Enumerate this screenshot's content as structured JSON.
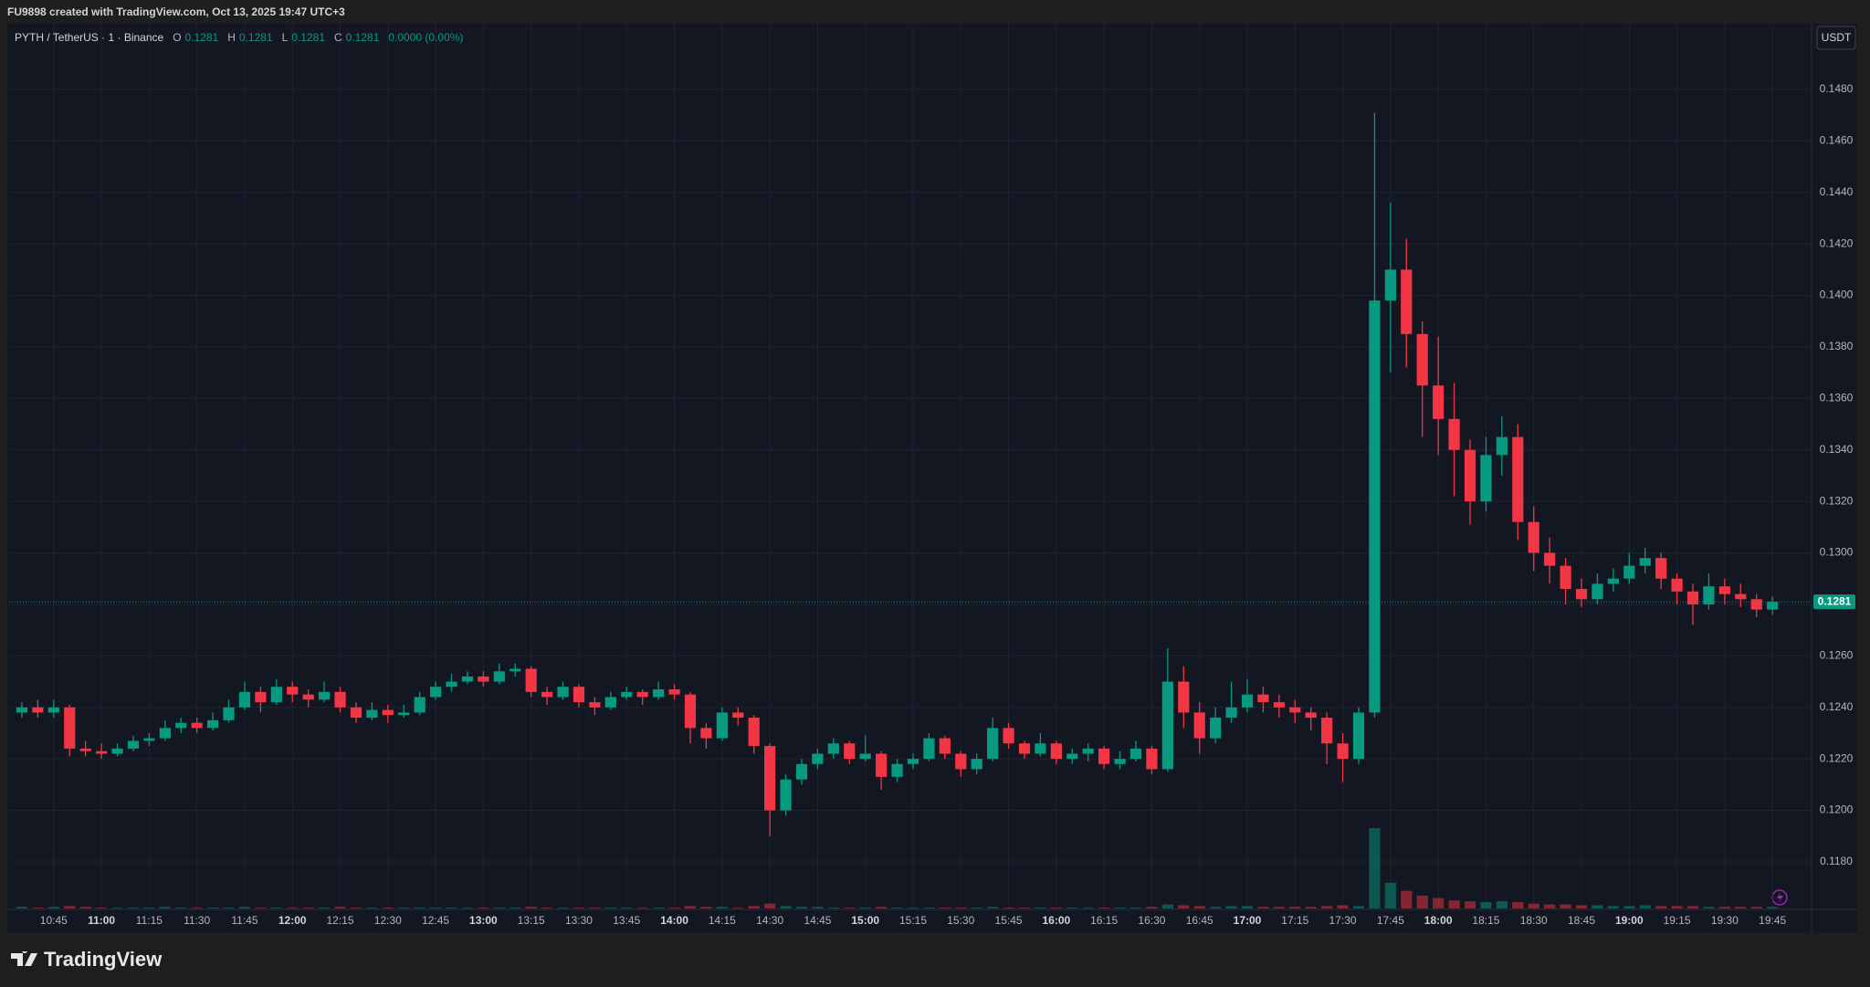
{
  "header": {
    "text": "FU9898 created with TradingView.com, Oct 13, 2025 19:47 UTC+3"
  },
  "legend": {
    "symbol": "PYTH / TetherUS · 1 · Binance",
    "open_label": "O",
    "open": 0.1281,
    "high_label": "H",
    "high": 0.1281,
    "low_label": "L",
    "low": 0.1281,
    "close_label": "C",
    "close": 0.1281,
    "change": "0.0000 (0.00%)"
  },
  "currency": "USDT",
  "brand": "TradingView",
  "chart_data": {
    "type": "candlestick",
    "up_color": "#089981",
    "down_color": "#f23645",
    "grid": true,
    "last_price": 0.1281,
    "ylim": [
      0.11619,
      0.15055
    ],
    "yticks": [
      {
        "value": 0.118,
        "label": "0.1180"
      },
      {
        "value": 0.12,
        "label": "0.1200"
      },
      {
        "value": 0.122,
        "label": "0.1220"
      },
      {
        "value": 0.124,
        "label": "0.1240"
      },
      {
        "value": 0.126,
        "label": "0.1260"
      },
      {
        "value": 0.128,
        "label": "0.1280"
      },
      {
        "value": 0.13,
        "label": "0.1300"
      },
      {
        "value": 0.132,
        "label": "0.1320"
      },
      {
        "value": 0.134,
        "label": "0.1340"
      },
      {
        "value": 0.136,
        "label": "0.1360"
      },
      {
        "value": 0.138,
        "label": "0.1380"
      },
      {
        "value": 0.14,
        "label": "0.1400"
      },
      {
        "value": 0.142,
        "label": "0.1420"
      },
      {
        "value": 0.144,
        "label": "0.1440"
      },
      {
        "value": 0.146,
        "label": "0.1460"
      },
      {
        "value": 0.148,
        "label": "0.1480"
      }
    ],
    "xlim": [
      "10:31",
      "19:57"
    ],
    "xticks": [
      "10:45",
      "11:00",
      "11:15",
      "11:30",
      "11:45",
      "12:00",
      "12:15",
      "12:30",
      "12:45",
      "13:00",
      "13:15",
      "13:30",
      "13:45",
      "14:00",
      "14:15",
      "14:30",
      "14:45",
      "15:00",
      "15:15",
      "15:30",
      "15:45",
      "16:00",
      "16:15",
      "16:30",
      "16:45",
      "17:00",
      "17:15",
      "17:30",
      "17:45",
      "18:00",
      "18:15",
      "18:30",
      "18:45",
      "19:00",
      "19:15",
      "19:30",
      "19:45"
    ],
    "x": [
      "10:35",
      "10:40",
      "10:45",
      "10:50",
      "10:55",
      "11:00",
      "11:05",
      "11:10",
      "11:15",
      "11:20",
      "11:25",
      "11:30",
      "11:35",
      "11:40",
      "11:45",
      "11:50",
      "11:55",
      "12:00",
      "12:05",
      "12:10",
      "12:15",
      "12:20",
      "12:25",
      "12:30",
      "12:35",
      "12:40",
      "12:45",
      "12:50",
      "12:55",
      "13:00",
      "13:05",
      "13:10",
      "13:15",
      "13:20",
      "13:25",
      "13:30",
      "13:35",
      "13:40",
      "13:45",
      "13:50",
      "13:55",
      "14:00",
      "14:05",
      "14:10",
      "14:15",
      "14:20",
      "14:25",
      "14:30",
      "14:35",
      "14:40",
      "14:45",
      "14:50",
      "14:55",
      "15:00",
      "15:05",
      "15:10",
      "15:15",
      "15:20",
      "15:25",
      "15:30",
      "15:35",
      "15:40",
      "15:45",
      "15:50",
      "15:55",
      "16:00",
      "16:05",
      "16:10",
      "16:15",
      "16:20",
      "16:25",
      "16:30",
      "16:35",
      "16:40",
      "16:45",
      "16:50",
      "16:55",
      "17:00",
      "17:05",
      "17:10",
      "17:15",
      "17:20",
      "17:25",
      "17:30",
      "17:35",
      "17:40",
      "17:45",
      "17:50",
      "17:55",
      "18:00",
      "18:05",
      "18:10",
      "18:15",
      "18:20",
      "18:25",
      "18:30",
      "18:35",
      "18:40",
      "18:45",
      "18:50",
      "18:55",
      "19:00",
      "19:05",
      "19:10",
      "19:15",
      "19:20",
      "19:25",
      "19:30",
      "19:35",
      "19:40",
      "19:45"
    ],
    "candles": [
      [
        0.1238,
        0.1242,
        0.1236,
        0.124
      ],
      [
        0.124,
        0.1243,
        0.1236,
        0.1238
      ],
      [
        0.1238,
        0.1243,
        0.1236,
        0.124
      ],
      [
        0.124,
        0.1241,
        0.1221,
        0.1224
      ],
      [
        0.1224,
        0.1227,
        0.1221,
        0.1223
      ],
      [
        0.1223,
        0.1226,
        0.122,
        0.1222
      ],
      [
        0.1222,
        0.1226,
        0.1221,
        0.1224
      ],
      [
        0.1224,
        0.1229,
        0.1223,
        0.1227
      ],
      [
        0.1227,
        0.123,
        0.1225,
        0.1228
      ],
      [
        0.1228,
        0.1235,
        0.1227,
        0.1232
      ],
      [
        0.1232,
        0.1236,
        0.123,
        0.1234
      ],
      [
        0.1234,
        0.1236,
        0.123,
        0.1232
      ],
      [
        0.1232,
        0.1238,
        0.1231,
        0.1235
      ],
      [
        0.1235,
        0.1243,
        0.1234,
        0.124
      ],
      [
        0.124,
        0.125,
        0.1239,
        0.1246
      ],
      [
        0.1246,
        0.1248,
        0.1238,
        0.1242
      ],
      [
        0.1242,
        0.1251,
        0.1241,
        0.1248
      ],
      [
        0.1248,
        0.125,
        0.1242,
        0.1245
      ],
      [
        0.1245,
        0.1247,
        0.124,
        0.1243
      ],
      [
        0.1243,
        0.125,
        0.1242,
        0.1246
      ],
      [
        0.1246,
        0.1248,
        0.1238,
        0.124
      ],
      [
        0.124,
        0.1242,
        0.1234,
        0.1236
      ],
      [
        0.1236,
        0.1242,
        0.1235,
        0.1239
      ],
      [
        0.1239,
        0.1241,
        0.1234,
        0.1237
      ],
      [
        0.1237,
        0.1241,
        0.1236,
        0.1238
      ],
      [
        0.1238,
        0.1246,
        0.1237,
        0.1244
      ],
      [
        0.1244,
        0.125,
        0.1243,
        0.1248
      ],
      [
        0.1248,
        0.1253,
        0.1246,
        0.125
      ],
      [
        0.125,
        0.1254,
        0.1249,
        0.1252
      ],
      [
        0.1252,
        0.1254,
        0.1248,
        0.125
      ],
      [
        0.125,
        0.1257,
        0.1249,
        0.1254
      ],
      [
        0.1254,
        0.1257,
        0.1252,
        0.1255
      ],
      [
        0.1255,
        0.1256,
        0.1244,
        0.1246
      ],
      [
        0.1246,
        0.1248,
        0.1241,
        0.1244
      ],
      [
        0.1244,
        0.125,
        0.1243,
        0.1248
      ],
      [
        0.1248,
        0.1249,
        0.124,
        0.1242
      ],
      [
        0.1242,
        0.1244,
        0.1237,
        0.124
      ],
      [
        0.124,
        0.1246,
        0.1239,
        0.1244
      ],
      [
        0.1244,
        0.1248,
        0.1243,
        0.1246
      ],
      [
        0.1246,
        0.1247,
        0.1241,
        0.1244
      ],
      [
        0.1244,
        0.125,
        0.1243,
        0.1247
      ],
      [
        0.1247,
        0.1249,
        0.1243,
        0.1245
      ],
      [
        0.1245,
        0.1246,
        0.1226,
        0.1232
      ],
      [
        0.1232,
        0.1234,
        0.1224,
        0.1228
      ],
      [
        0.1228,
        0.124,
        0.1227,
        0.1238
      ],
      [
        0.1238,
        0.124,
        0.1233,
        0.1236
      ],
      [
        0.1236,
        0.1237,
        0.1222,
        0.1225
      ],
      [
        0.1225,
        0.1226,
        0.119,
        0.12
      ],
      [
        0.12,
        0.1214,
        0.1198,
        0.1212
      ],
      [
        0.1212,
        0.122,
        0.121,
        0.1218
      ],
      [
        0.1218,
        0.1224,
        0.1216,
        0.1222
      ],
      [
        0.1222,
        0.1228,
        0.122,
        0.1226
      ],
      [
        0.1226,
        0.1227,
        0.1218,
        0.122
      ],
      [
        0.122,
        0.1229,
        0.1219,
        0.1222
      ],
      [
        0.1222,
        0.1223,
        0.1208,
        0.1213
      ],
      [
        0.1213,
        0.122,
        0.1211,
        0.1218
      ],
      [
        0.1218,
        0.1222,
        0.1216,
        0.122
      ],
      [
        0.122,
        0.123,
        0.1219,
        0.1228
      ],
      [
        0.1228,
        0.1229,
        0.122,
        0.1222
      ],
      [
        0.1222,
        0.1223,
        0.1213,
        0.1216
      ],
      [
        0.1216,
        0.1222,
        0.1214,
        0.122
      ],
      [
        0.122,
        0.1236,
        0.1219,
        0.1232
      ],
      [
        0.1232,
        0.1234,
        0.1224,
        0.1226
      ],
      [
        0.1226,
        0.1227,
        0.122,
        0.1222
      ],
      [
        0.1222,
        0.123,
        0.1221,
        0.1226
      ],
      [
        0.1226,
        0.1227,
        0.1218,
        0.122
      ],
      [
        0.122,
        0.1224,
        0.1218,
        0.1222
      ],
      [
        0.1222,
        0.1226,
        0.1219,
        0.1224
      ],
      [
        0.1224,
        0.1225,
        0.1216,
        0.1218
      ],
      [
        0.1218,
        0.1223,
        0.1216,
        0.122
      ],
      [
        0.122,
        0.1227,
        0.1219,
        0.1224
      ],
      [
        0.1224,
        0.1225,
        0.1214,
        0.1216
      ],
      [
        0.1216,
        0.1263,
        0.1215,
        0.125
      ],
      [
        0.125,
        0.1256,
        0.1232,
        0.1238
      ],
      [
        0.1238,
        0.1242,
        0.1222,
        0.1228
      ],
      [
        0.1228,
        0.124,
        0.1226,
        0.1236
      ],
      [
        0.1236,
        0.125,
        0.1234,
        0.124
      ],
      [
        0.124,
        0.1251,
        0.1238,
        0.1245
      ],
      [
        0.1245,
        0.1248,
        0.1238,
        0.1242
      ],
      [
        0.1242,
        0.1245,
        0.1236,
        0.124
      ],
      [
        0.124,
        0.1243,
        0.1234,
        0.1238
      ],
      [
        0.1238,
        0.124,
        0.1231,
        0.1236
      ],
      [
        0.1236,
        0.1238,
        0.1218,
        0.1226
      ],
      [
        0.1226,
        0.123,
        0.1211,
        0.122
      ],
      [
        0.122,
        0.124,
        0.1218,
        0.1238
      ],
      [
        0.1238,
        0.1471,
        0.1236,
        0.1398
      ],
      [
        0.1398,
        0.1436,
        0.137,
        0.141
      ],
      [
        0.141,
        0.1422,
        0.1372,
        0.1385
      ],
      [
        0.1385,
        0.139,
        0.1345,
        0.1365
      ],
      [
        0.1365,
        0.1384,
        0.1338,
        0.1352
      ],
      [
        0.1352,
        0.1366,
        0.1322,
        0.134
      ],
      [
        0.134,
        0.1344,
        0.1311,
        0.132
      ],
      [
        0.132,
        0.1345,
        0.1316,
        0.1338
      ],
      [
        0.1338,
        0.1353,
        0.133,
        0.1345
      ],
      [
        0.1345,
        0.135,
        0.1305,
        0.1312
      ],
      [
        0.1312,
        0.1318,
        0.1293,
        0.13
      ],
      [
        0.13,
        0.1306,
        0.1288,
        0.1295
      ],
      [
        0.1295,
        0.1298,
        0.128,
        0.1286
      ],
      [
        0.1286,
        0.129,
        0.1279,
        0.1282
      ],
      [
        0.1282,
        0.1292,
        0.128,
        0.1288
      ],
      [
        0.1288,
        0.1294,
        0.1285,
        0.129
      ],
      [
        0.129,
        0.13,
        0.1288,
        0.1295
      ],
      [
        0.1295,
        0.1302,
        0.1292,
        0.1298
      ],
      [
        0.1298,
        0.13,
        0.1286,
        0.129
      ],
      [
        0.129,
        0.1292,
        0.128,
        0.1285
      ],
      [
        0.1285,
        0.1288,
        0.1272,
        0.128
      ],
      [
        0.128,
        0.1292,
        0.1278,
        0.1287
      ],
      [
        0.1287,
        0.129,
        0.128,
        0.1284
      ],
      [
        0.1284,
        0.1288,
        0.1279,
        0.1282
      ],
      [
        0.1282,
        0.1284,
        0.1275,
        0.1278
      ],
      [
        0.1278,
        0.1283,
        0.1276,
        0.1281
      ]
    ],
    "volume": [
      2,
      1,
      2,
      3,
      2,
      1,
      1,
      1,
      1,
      2,
      1,
      1,
      1,
      1,
      2,
      1,
      1,
      1,
      1,
      1,
      2,
      1,
      1,
      1,
      1,
      1,
      1,
      1,
      1,
      1,
      1,
      1,
      2,
      1,
      1,
      1,
      1,
      1,
      1,
      1,
      1,
      1,
      3,
      2,
      2,
      1,
      3,
      6,
      3,
      2,
      2,
      1,
      1,
      1,
      2,
      1,
      1,
      1,
      1,
      1,
      1,
      2,
      1,
      1,
      1,
      1,
      1,
      1,
      1,
      1,
      1,
      2,
      5,
      4,
      3,
      2,
      3,
      3,
      2,
      2,
      2,
      2,
      3,
      4,
      3,
      100,
      32,
      22,
      16,
      13,
      10,
      9,
      8,
      9,
      8,
      6,
      5,
      5,
      4,
      4,
      3,
      3,
      4,
      3,
      3,
      3,
      2,
      2,
      2,
      2,
      2
    ]
  }
}
